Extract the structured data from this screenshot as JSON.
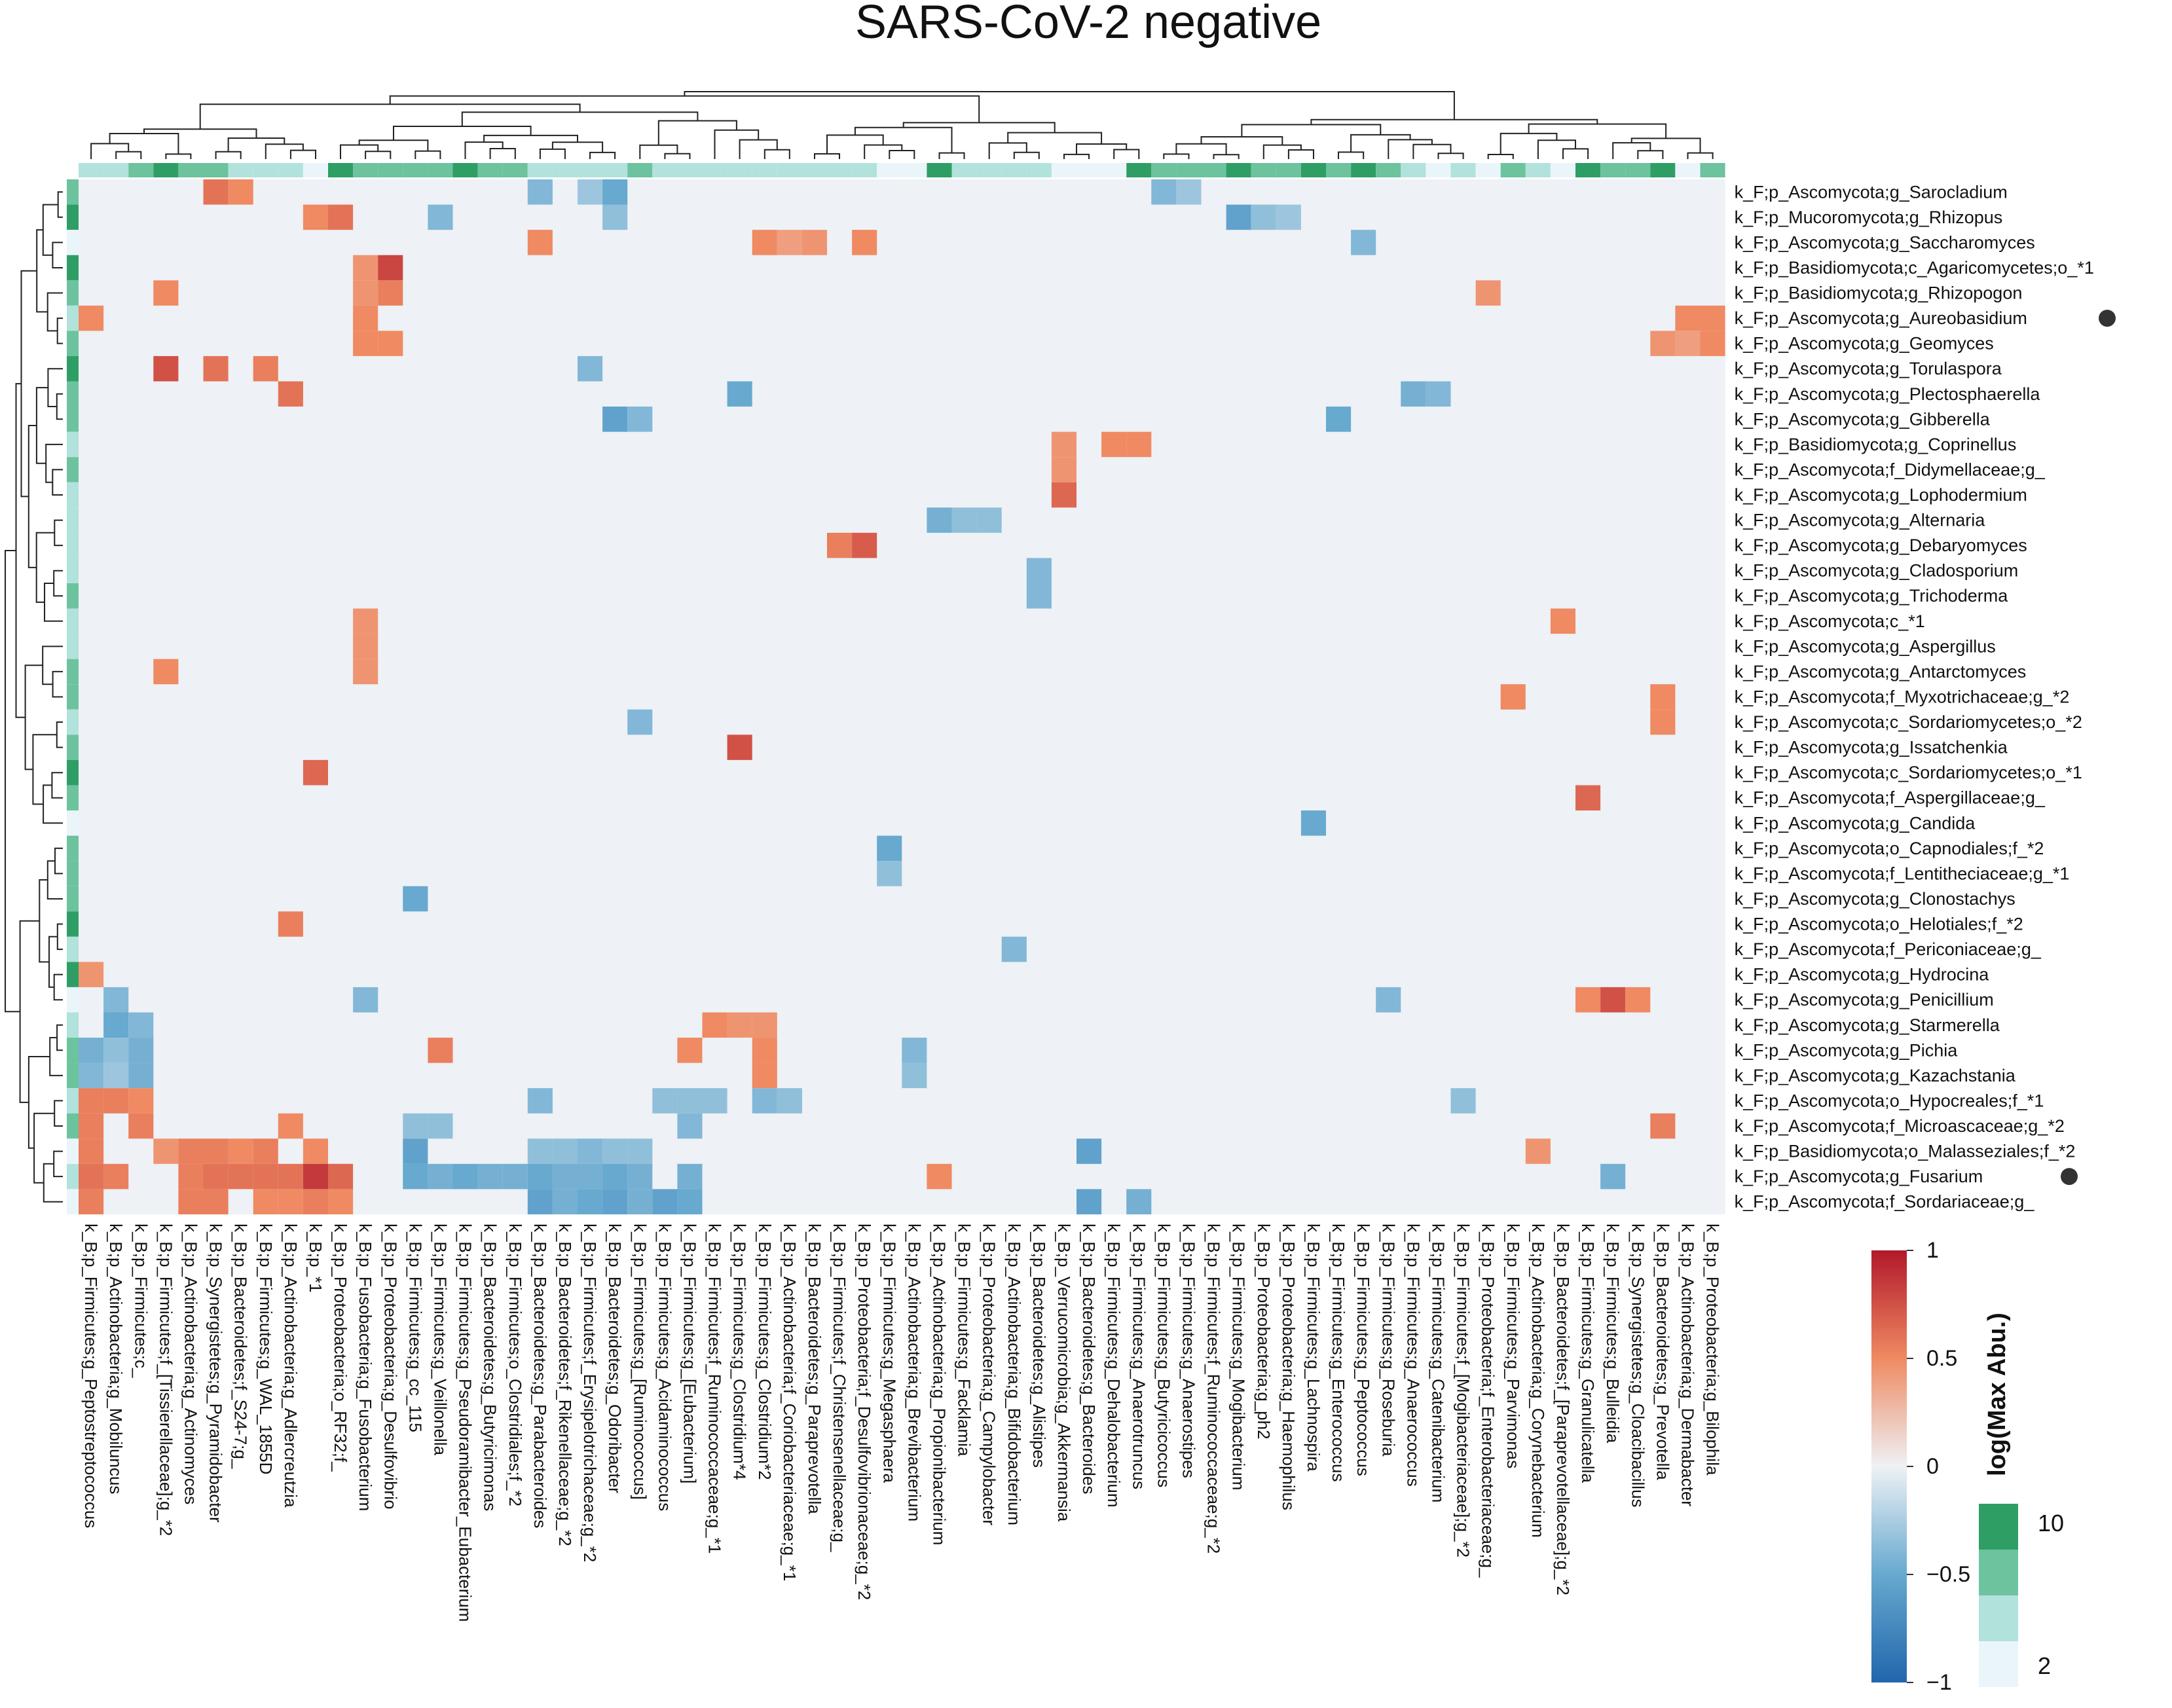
{
  "chart_data": {
    "type": "heatmap",
    "title": "SARS-CoV-2 negative",
    "colorbar": {
      "label": "log(Max Abu.)",
      "ticks": [
        "1",
        "0.5",
        "0",
        "−0.5",
        "−1"
      ],
      "range": [
        -1,
        1
      ]
    },
    "annotation_legend": {
      "ticks": [
        "10",
        "2"
      ],
      "colors": [
        "#2e9e65",
        "#6cc39d",
        "#b2e2dc",
        "#eaf5fa"
      ]
    },
    "colors": {
      "high": "#b2182b",
      "mid": "#eef1f5",
      "low": "#2166ac",
      "marker": "#333333"
    },
    "columns": [
      "k_B;p_Firmicutes;g_Peptostreptococcus",
      "k_B;p_Actinobacteria;g_Mobiluncus",
      "k_B;p_Firmicutes;c_",
      "k_B;p_Firmicutes;f_[Tissierellaceae];g_*2",
      "k_B;p_Actinobacteria;g_Actinomyces",
      "k_B;p_Synergistetes;g_Pyramidobacter",
      "k_B;p_Bacteroidetes;f_S24-7;g_",
      "k_B;p_Firmicutes;g_WAL_1855D",
      "k_B;p_Actinobacteria;g_Adlercreutzia",
      "k_B;p_*1",
      "k_B;p_Proteobacteria;o_RF32;f_",
      "k_B;p_Fusobacteria;g_Fusobacterium",
      "k_B;p_Proteobacteria;g_Desulfovibrio",
      "k_B;p_Firmicutes;g_cc_115",
      "k_B;p_Firmicutes;g_Veillonella",
      "k_B;p_Firmicutes;g_Pseudoramibacter_Eubacterium",
      "k_B;p_Bacteroidetes;g_Butyricimonas",
      "k_B;p_Firmicutes;o_Clostridiales;f_*2",
      "k_B;p_Bacteroidetes;g_Parabacteroides",
      "k_B;p_Bacteroidetes;f_Rikenellaceae;g_*2",
      "k_B;p_Firmicutes;f_Erysipelotrichaceae;g_*2",
      "k_B;p_Bacteroidetes;g_Odoribacter",
      "k_B;p_Firmicutes;g_[Ruminococcus]",
      "k_B;p_Firmicutes;g_Acidaminococcus",
      "k_B;p_Firmicutes;g_[Eubacterium]",
      "k_B;p_Firmicutes;f_Ruminococcaceae;g_*1",
      "k_B;p_Firmicutes;g_Clostridium*4",
      "k_B;p_Firmicutes;g_Clostridium*2",
      "k_B;p_Actinobacteria;f_Coriobacteriaceae;g_*1",
      "k_B;p_Bacteroidetes;g_Paraprevotella",
      "k_B;p_Firmicutes;f_Christensenellaceae;g_",
      "k_B;p_Proteobacteria;f_Desulfovibrionaceae;g_*2",
      "k_B;p_Firmicutes;g_Megasphaera",
      "k_B;p_Actinobacteria;g_Brevibacterium",
      "k_B;p_Actinobacteria;g_Propionibacterium",
      "k_B;p_Firmicutes;g_Facklamia",
      "k_B;p_Proteobacteria;g_Campylobacter",
      "k_B;p_Actinobacteria;g_Bifidobacterium",
      "k_B;p_Bacteroidetes;g_Alistipes",
      "k_B;p_Verrucomicrobia;g_Akkermansia",
      "k_B;p_Bacteroidetes;g_Bacteroides",
      "k_B;p_Firmicutes;g_Dehalobacterium",
      "k_B;p_Firmicutes;g_Anaerotruncus",
      "k_B;p_Firmicutes;g_Butyricicoccus",
      "k_B;p_Firmicutes;g_Anaerostipes",
      "k_B;p_Firmicutes;f_Ruminococcaceae;g_*2",
      "k_B;p_Firmicutes;g_Mogibacterium",
      "k_B;p_Proteobacteria;g_ph2",
      "k_B;p_Proteobacteria;g_Haemophilus",
      "k_B;p_Firmicutes;g_Lachnospira",
      "k_B;p_Firmicutes;g_Enterococcus",
      "k_B;p_Firmicutes;g_Peptococcus",
      "k_B;p_Firmicutes;g_Roseburia",
      "k_B;p_Firmicutes;g_Anaerococcus",
      "k_B;p_Firmicutes;g_Catenibacterium",
      "k_B;p_Firmicutes;f_[Mogibacteriaceae];g_*2",
      "k_B;p_Proteobacteria;f_Enterobacteriaceae;g_",
      "k_B;p_Firmicutes;g_Parvimonas",
      "k_B;p_Actinobacteria;g_Corynebacterium",
      "k_B;p_Bacteroidetes;f_[Paraprevotellaceae];g_*2",
      "k_B;p_Firmicutes;g_Granulicatella",
      "k_B;p_Firmicutes;g_Bulleidia",
      "k_B;p_Synergistetes;g_Cloacibacillus",
      "k_B;p_Bacteroidetes;g_Prevotella",
      "k_B;p_Actinobacteria;g_Dermabacter",
      "k_B;p_Proteobacteria;g_Bilophila"
    ],
    "rows": [
      "k_F;p_Ascomycota;g_Sarocladium",
      "k_F;p_Mucoromycota;g_Rhizopus",
      "k_F;p_Ascomycota;g_Saccharomyces",
      "k_F;p_Basidiomycota;c_Agaricomycetes;o_*1",
      "k_F;p_Basidiomycota;g_Rhizopogon",
      "k_F;p_Ascomycota;g_Aureobasidium",
      "k_F;p_Ascomycota;g_Geomyces",
      "k_F;p_Ascomycota;g_Torulaspora",
      "k_F;p_Ascomycota;g_Plectosphaerella",
      "k_F;p_Ascomycota;g_Gibberella",
      "k_F;p_Basidiomycota;g_Coprinellus",
      "k_F;p_Ascomycota;f_Didymellaceae;g_",
      "k_F;p_Ascomycota;g_Lophodermium",
      "k_F;p_Ascomycota;g_Alternaria",
      "k_F;p_Ascomycota;g_Debaryomyces",
      "k_F;p_Ascomycota;g_Cladosporium",
      "k_F;p_Ascomycota;g_Trichoderma",
      "k_F;p_Ascomycota;c_*1",
      "k_F;p_Ascomycota;g_Aspergillus",
      "k_F;p_Ascomycota;g_Antarctomyces",
      "k_F;p_Ascomycota;f_Myxotrichaceae;g_*2",
      "k_F;p_Ascomycota;c_Sordariomycetes;o_*2",
      "k_F;p_Ascomycota;g_Issatchenkia",
      "k_F;p_Ascomycota;c_Sordariomycetes;o_*1",
      "k_F;p_Ascomycota;f_Aspergillaceae;g_",
      "k_F;p_Ascomycota;g_Candida",
      "k_F;p_Ascomycota;o_Capnodiales;f_*2",
      "k_F;p_Ascomycota;f_Lentitheciaceae;g_*1",
      "k_F;p_Ascomycota;g_Clonostachys",
      "k_F;p_Ascomycota;o_Helotiales;f_*2",
      "k_F;p_Ascomycota;f_Periconiaceae;g_",
      "k_F;p_Ascomycota;g_Hydrocina",
      "k_F;p_Ascomycota;g_Penicillium",
      "k_F;p_Ascomycota;g_Starmerella",
      "k_F;p_Ascomycota;g_Pichia",
      "k_F;p_Ascomycota;g_Kazachstania",
      "k_F;p_Ascomycota;o_Hypocreales;f_*1",
      "k_F;p_Ascomycota;f_Microascaceae;g_*2",
      "k_F;p_Basidiomycota;o_Malasseziales;f_*2",
      "k_F;p_Ascomycota;g_Fusarium",
      "k_F;p_Ascomycota;f_Sordariaceae;g_"
    ],
    "marked_rows": [
      "k_F;p_Ascomycota;g_Aureobasidium",
      "k_F;p_Ascomycota;g_Fusarium"
    ],
    "col_annotation": [
      3,
      3,
      2,
      1,
      2,
      2,
      3,
      3,
      3,
      4,
      1,
      2,
      2,
      2,
      2,
      1,
      2,
      2,
      3,
      3,
      3,
      3,
      2,
      3,
      3,
      3,
      3,
      3,
      3,
      3,
      3,
      3,
      4,
      4,
      1,
      3,
      3,
      3,
      3,
      4,
      4,
      4,
      1,
      2,
      2,
      2,
      1,
      2,
      2,
      1,
      2,
      1,
      2,
      3,
      4,
      3,
      4,
      2,
      3,
      4,
      1,
      2,
      2,
      1,
      4,
      2
    ],
    "row_annotation": [
      2,
      1,
      4,
      1,
      2,
      3,
      2,
      1,
      2,
      2,
      3,
      2,
      3,
      3,
      3,
      3,
      2,
      3,
      3,
      2,
      2,
      3,
      2,
      1,
      2,
      4,
      2,
      2,
      2,
      1,
      3,
      1,
      4,
      3,
      2,
      2,
      3,
      2,
      4,
      3,
      4
    ],
    "cells": [
      {
        "row": 0,
        "col": 5,
        "v": 0.6
      },
      {
        "row": 0,
        "col": 6,
        "v": 0.5
      },
      {
        "row": 0,
        "col": 18,
        "v": -0.4
      },
      {
        "row": 0,
        "col": 20,
        "v": -0.3
      },
      {
        "row": 0,
        "col": 21,
        "v": -0.5
      },
      {
        "row": 0,
        "col": 43,
        "v": -0.4
      },
      {
        "row": 0,
        "col": 44,
        "v": -0.3
      },
      {
        "row": 1,
        "col": 9,
        "v": 0.5
      },
      {
        "row": 1,
        "col": 10,
        "v": 0.6
      },
      {
        "row": 1,
        "col": 14,
        "v": -0.4
      },
      {
        "row": 1,
        "col": 21,
        "v": -0.35
      },
      {
        "row": 1,
        "col": 46,
        "v": -0.55
      },
      {
        "row": 1,
        "col": 47,
        "v": -0.35
      },
      {
        "row": 1,
        "col": 48,
        "v": -0.3
      },
      {
        "row": 2,
        "col": 18,
        "v": 0.5
      },
      {
        "row": 2,
        "col": 27,
        "v": 0.5
      },
      {
        "row": 2,
        "col": 28,
        "v": 0.4
      },
      {
        "row": 2,
        "col": 29,
        "v": 0.45
      },
      {
        "row": 2,
        "col": 31,
        "v": 0.5
      },
      {
        "row": 2,
        "col": 51,
        "v": -0.4
      },
      {
        "row": 3,
        "col": 11,
        "v": 0.45
      },
      {
        "row": 3,
        "col": 12,
        "v": 0.8
      },
      {
        "row": 4,
        "col": 3,
        "v": 0.5
      },
      {
        "row": 4,
        "col": 11,
        "v": 0.45
      },
      {
        "row": 4,
        "col": 12,
        "v": 0.55
      },
      {
        "row": 4,
        "col": 56,
        "v": 0.45
      },
      {
        "row": 5,
        "col": 0,
        "v": 0.5
      },
      {
        "row": 5,
        "col": 11,
        "v": 0.5
      },
      {
        "row": 5,
        "col": 64,
        "v": 0.5
      },
      {
        "row": 5,
        "col": 65,
        "v": 0.5
      },
      {
        "row": 6,
        "col": 11,
        "v": 0.5
      },
      {
        "row": 6,
        "col": 12,
        "v": 0.5
      },
      {
        "row": 6,
        "col": 63,
        "v": 0.45
      },
      {
        "row": 6,
        "col": 64,
        "v": 0.4
      },
      {
        "row": 6,
        "col": 65,
        "v": 0.5
      },
      {
        "row": 7,
        "col": 3,
        "v": 0.75
      },
      {
        "row": 7,
        "col": 5,
        "v": 0.6
      },
      {
        "row": 7,
        "col": 7,
        "v": 0.55
      },
      {
        "row": 7,
        "col": 20,
        "v": -0.4
      },
      {
        "row": 8,
        "col": 8,
        "v": 0.6
      },
      {
        "row": 8,
        "col": 26,
        "v": -0.5
      },
      {
        "row": 8,
        "col": 53,
        "v": -0.45
      },
      {
        "row": 8,
        "col": 54,
        "v": -0.4
      },
      {
        "row": 9,
        "col": 21,
        "v": -0.55
      },
      {
        "row": 9,
        "col": 22,
        "v": -0.4
      },
      {
        "row": 9,
        "col": 50,
        "v": -0.5
      },
      {
        "row": 10,
        "col": 39,
        "v": 0.45
      },
      {
        "row": 10,
        "col": 41,
        "v": 0.5
      },
      {
        "row": 10,
        "col": 42,
        "v": 0.5
      },
      {
        "row": 11,
        "col": 39,
        "v": 0.45
      },
      {
        "row": 12,
        "col": 39,
        "v": 0.65
      },
      {
        "row": 13,
        "col": 34,
        "v": -0.45
      },
      {
        "row": 13,
        "col": 35,
        "v": -0.35
      },
      {
        "row": 13,
        "col": 36,
        "v": -0.35
      },
      {
        "row": 14,
        "col": 30,
        "v": 0.55
      },
      {
        "row": 14,
        "col": 31,
        "v": 0.7
      },
      {
        "row": 15,
        "col": 38,
        "v": -0.4
      },
      {
        "row": 16,
        "col": 38,
        "v": -0.4
      },
      {
        "row": 17,
        "col": 11,
        "v": 0.45
      },
      {
        "row": 17,
        "col": 59,
        "v": 0.5
      },
      {
        "row": 18,
        "col": 11,
        "v": 0.45
      },
      {
        "row": 19,
        "col": 3,
        "v": 0.5
      },
      {
        "row": 19,
        "col": 11,
        "v": 0.45
      },
      {
        "row": 20,
        "col": 57,
        "v": 0.5
      },
      {
        "row": 20,
        "col": 63,
        "v": 0.5
      },
      {
        "row": 21,
        "col": 22,
        "v": -0.4
      },
      {
        "row": 21,
        "col": 63,
        "v": 0.5
      },
      {
        "row": 22,
        "col": 26,
        "v": 0.75
      },
      {
        "row": 23,
        "col": 9,
        "v": 0.65
      },
      {
        "row": 24,
        "col": 60,
        "v": 0.65
      },
      {
        "row": 25,
        "col": 49,
        "v": -0.5
      },
      {
        "row": 26,
        "col": 32,
        "v": -0.5
      },
      {
        "row": 27,
        "col": 32,
        "v": -0.35
      },
      {
        "row": 28,
        "col": 13,
        "v": -0.5
      },
      {
        "row": 29,
        "col": 8,
        "v": 0.55
      },
      {
        "row": 30,
        "col": 37,
        "v": -0.4
      },
      {
        "row": 31,
        "col": 0,
        "v": 0.45
      },
      {
        "row": 32,
        "col": 1,
        "v": -0.4
      },
      {
        "row": 32,
        "col": 11,
        "v": -0.4
      },
      {
        "row": 32,
        "col": 52,
        "v": -0.4
      },
      {
        "row": 32,
        "col": 60,
        "v": 0.5
      },
      {
        "row": 32,
        "col": 61,
        "v": 0.75
      },
      {
        "row": 32,
        "col": 62,
        "v": 0.5
      },
      {
        "row": 33,
        "col": 1,
        "v": -0.5
      },
      {
        "row": 33,
        "col": 2,
        "v": -0.4
      },
      {
        "row": 33,
        "col": 25,
        "v": 0.5
      },
      {
        "row": 33,
        "col": 26,
        "v": 0.45
      },
      {
        "row": 33,
        "col": 27,
        "v": 0.45
      },
      {
        "row": 34,
        "col": 0,
        "v": -0.45
      },
      {
        "row": 34,
        "col": 1,
        "v": -0.35
      },
      {
        "row": 34,
        "col": 2,
        "v": -0.45
      },
      {
        "row": 34,
        "col": 14,
        "v": 0.55
      },
      {
        "row": 34,
        "col": 24,
        "v": 0.5
      },
      {
        "row": 34,
        "col": 27,
        "v": 0.5
      },
      {
        "row": 34,
        "col": 33,
        "v": -0.4
      },
      {
        "row": 35,
        "col": 0,
        "v": -0.4
      },
      {
        "row": 35,
        "col": 1,
        "v": -0.3
      },
      {
        "row": 35,
        "col": 2,
        "v": -0.45
      },
      {
        "row": 35,
        "col": 27,
        "v": 0.5
      },
      {
        "row": 35,
        "col": 33,
        "v": -0.35
      },
      {
        "row": 36,
        "col": 0,
        "v": 0.55
      },
      {
        "row": 36,
        "col": 1,
        "v": 0.55
      },
      {
        "row": 36,
        "col": 2,
        "v": 0.5
      },
      {
        "row": 36,
        "col": 18,
        "v": -0.4
      },
      {
        "row": 36,
        "col": 23,
        "v": -0.35
      },
      {
        "row": 36,
        "col": 24,
        "v": -0.35
      },
      {
        "row": 36,
        "col": 25,
        "v": -0.35
      },
      {
        "row": 36,
        "col": 27,
        "v": -0.4
      },
      {
        "row": 36,
        "col": 28,
        "v": -0.35
      },
      {
        "row": 36,
        "col": 55,
        "v": -0.35
      },
      {
        "row": 37,
        "col": 0,
        "v": 0.55
      },
      {
        "row": 37,
        "col": 2,
        "v": 0.55
      },
      {
        "row": 37,
        "col": 8,
        "v": 0.5
      },
      {
        "row": 37,
        "col": 13,
        "v": -0.35
      },
      {
        "row": 37,
        "col": 14,
        "v": -0.35
      },
      {
        "row": 37,
        "col": 24,
        "v": -0.4
      },
      {
        "row": 37,
        "col": 63,
        "v": 0.55
      },
      {
        "row": 38,
        "col": 0,
        "v": 0.55
      },
      {
        "row": 38,
        "col": 3,
        "v": 0.45
      },
      {
        "row": 38,
        "col": 4,
        "v": 0.55
      },
      {
        "row": 38,
        "col": 5,
        "v": 0.55
      },
      {
        "row": 38,
        "col": 6,
        "v": 0.5
      },
      {
        "row": 38,
        "col": 7,
        "v": 0.55
      },
      {
        "row": 38,
        "col": 9,
        "v": 0.5
      },
      {
        "row": 38,
        "col": 13,
        "v": -0.55
      },
      {
        "row": 38,
        "col": 18,
        "v": -0.35
      },
      {
        "row": 38,
        "col": 19,
        "v": -0.35
      },
      {
        "row": 38,
        "col": 20,
        "v": -0.4
      },
      {
        "row": 38,
        "col": 21,
        "v": -0.35
      },
      {
        "row": 38,
        "col": 22,
        "v": -0.35
      },
      {
        "row": 38,
        "col": 40,
        "v": -0.55
      },
      {
        "row": 38,
        "col": 58,
        "v": 0.45
      },
      {
        "row": 39,
        "col": 0,
        "v": 0.6
      },
      {
        "row": 39,
        "col": 1,
        "v": 0.55
      },
      {
        "row": 39,
        "col": 4,
        "v": 0.55
      },
      {
        "row": 39,
        "col": 5,
        "v": 0.6
      },
      {
        "row": 39,
        "col": 6,
        "v": 0.6
      },
      {
        "row": 39,
        "col": 7,
        "v": 0.6
      },
      {
        "row": 39,
        "col": 8,
        "v": 0.6
      },
      {
        "row": 39,
        "col": 9,
        "v": 0.85
      },
      {
        "row": 39,
        "col": 10,
        "v": 0.65
      },
      {
        "row": 39,
        "col": 13,
        "v": -0.5
      },
      {
        "row": 39,
        "col": 14,
        "v": -0.45
      },
      {
        "row": 39,
        "col": 15,
        "v": -0.5
      },
      {
        "row": 39,
        "col": 16,
        "v": -0.45
      },
      {
        "row": 39,
        "col": 17,
        "v": -0.45
      },
      {
        "row": 39,
        "col": 18,
        "v": -0.5
      },
      {
        "row": 39,
        "col": 19,
        "v": -0.45
      },
      {
        "row": 39,
        "col": 20,
        "v": -0.45
      },
      {
        "row": 39,
        "col": 21,
        "v": -0.5
      },
      {
        "row": 39,
        "col": 22,
        "v": -0.45
      },
      {
        "row": 39,
        "col": 24,
        "v": -0.45
      },
      {
        "row": 39,
        "col": 34,
        "v": 0.5
      },
      {
        "row": 39,
        "col": 61,
        "v": -0.45
      },
      {
        "row": 40,
        "col": 0,
        "v": 0.55
      },
      {
        "row": 40,
        "col": 4,
        "v": 0.55
      },
      {
        "row": 40,
        "col": 5,
        "v": 0.55
      },
      {
        "row": 40,
        "col": 7,
        "v": 0.5
      },
      {
        "row": 40,
        "col": 8,
        "v": 0.5
      },
      {
        "row": 40,
        "col": 9,
        "v": 0.55
      },
      {
        "row": 40,
        "col": 10,
        "v": 0.5
      },
      {
        "row": 40,
        "col": 18,
        "v": -0.55
      },
      {
        "row": 40,
        "col": 19,
        "v": -0.45
      },
      {
        "row": 40,
        "col": 20,
        "v": -0.5
      },
      {
        "row": 40,
        "col": 21,
        "v": -0.55
      },
      {
        "row": 40,
        "col": 22,
        "v": -0.45
      },
      {
        "row": 40,
        "col": 23,
        "v": -0.55
      },
      {
        "row": 40,
        "col": 24,
        "v": -0.5
      },
      {
        "row": 40,
        "col": 40,
        "v": -0.55
      },
      {
        "row": 40,
        "col": 42,
        "v": -0.45
      }
    ]
  }
}
